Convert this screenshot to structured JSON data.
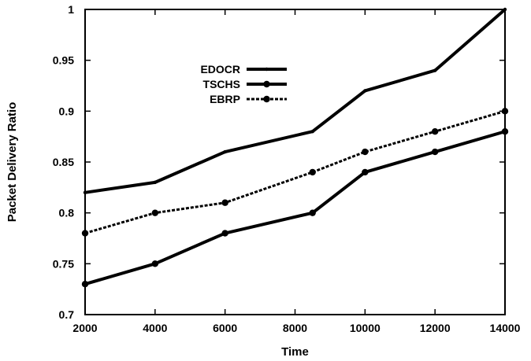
{
  "chart_data": {
    "type": "line",
    "title": "",
    "xlabel": "Time",
    "ylabel": "Packet Delivery Ratio",
    "xlim": [
      2000,
      14000
    ],
    "ylim": [
      0.7,
      1
    ],
    "x_ticks": [
      "2000",
      "4000",
      "6000",
      "8000",
      "10000",
      "12000",
      "14000"
    ],
    "y_ticks": [
      "0.7",
      "0.75",
      "0.8",
      "0.85",
      "0.9",
      "0.95",
      "1"
    ],
    "grid": false,
    "legend_position": "top-left",
    "series": [
      {
        "name": "EDOCR",
        "style": "solid",
        "marker": "small-dot",
        "color": "#000000",
        "x": [
          2000,
          4000,
          6000,
          8500,
          10000,
          12000,
          14000
        ],
        "values": [
          0.82,
          0.83,
          0.86,
          0.88,
          0.92,
          0.94,
          1.0
        ]
      },
      {
        "name": "TSCHS",
        "style": "solid",
        "marker": "dot",
        "color": "#000000",
        "x": [
          2000,
          4000,
          6000,
          8500,
          10000,
          12000,
          14000
        ],
        "values": [
          0.73,
          0.75,
          0.78,
          0.8,
          0.84,
          0.86,
          0.88
        ]
      },
      {
        "name": "EBRP",
        "style": "dashed",
        "marker": "dot",
        "color": "#000000",
        "x": [
          2000,
          4000,
          6000,
          8500,
          10000,
          12000,
          14000
        ],
        "values": [
          0.78,
          0.8,
          0.81,
          0.84,
          0.86,
          0.88,
          0.9
        ]
      }
    ]
  }
}
